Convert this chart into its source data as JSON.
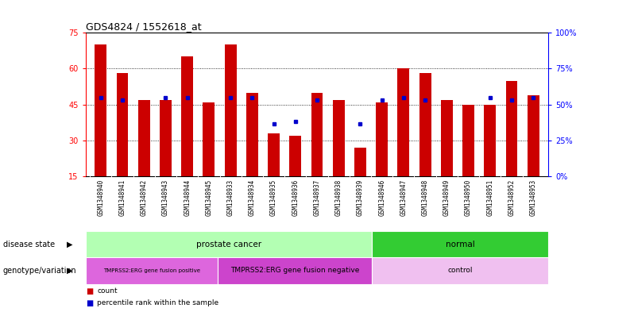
{
  "title": "GDS4824 / 1552618_at",
  "samples": [
    "GSM1348940",
    "GSM1348941",
    "GSM1348942",
    "GSM1348943",
    "GSM1348944",
    "GSM1348945",
    "GSM1348933",
    "GSM1348934",
    "GSM1348935",
    "GSM1348936",
    "GSM1348937",
    "GSM1348938",
    "GSM1348939",
    "GSM1348946",
    "GSM1348947",
    "GSM1348948",
    "GSM1348949",
    "GSM1348950",
    "GSM1348951",
    "GSM1348952",
    "GSM1348953"
  ],
  "bar_heights": [
    70,
    58,
    47,
    47,
    65,
    46,
    70,
    50,
    33,
    32,
    50,
    47,
    27,
    46,
    60,
    58,
    47,
    45,
    45,
    55,
    49
  ],
  "blue_dots": [
    48,
    47,
    null,
    48,
    48,
    null,
    48,
    48,
    37,
    38,
    47,
    null,
    37,
    47,
    48,
    47,
    null,
    null,
    48,
    47,
    48
  ],
  "ylim_left": [
    15,
    75
  ],
  "ylim_right": [
    0,
    100
  ],
  "yticks_left": [
    15,
    30,
    45,
    60,
    75
  ],
  "yticks_right": [
    0,
    25,
    50,
    75,
    100
  ],
  "ytick_labels_right": [
    "0%",
    "25%",
    "50%",
    "75%",
    "100%"
  ],
  "bar_color": "#cc0000",
  "dot_color": "#0000cc",
  "disease_state_groups": [
    {
      "label": "prostate cancer",
      "start": 0,
      "end": 12,
      "color": "#b3ffb3"
    },
    {
      "label": "normal",
      "start": 13,
      "end": 20,
      "color": "#33cc33"
    }
  ],
  "genotype_groups": [
    {
      "label": "TMPRSS2:ERG gene fusion positive",
      "start": 0,
      "end": 5,
      "color": "#dd66dd"
    },
    {
      "label": "TMPRSS2:ERG gene fusion negative",
      "start": 6,
      "end": 12,
      "color": "#cc44cc"
    },
    {
      "label": "control",
      "start": 13,
      "end": 20,
      "color": "#f0c0f0"
    }
  ],
  "bar_width": 0.55,
  "bar_bottom": 15,
  "annotation_left": "disease state",
  "annotation_left2": "genotype/variation",
  "legend_count_color": "#cc0000",
  "legend_pct_color": "#0000cc",
  "grid_yticks": [
    30,
    45,
    60
  ],
  "sample_label_bg": "#cccccc"
}
